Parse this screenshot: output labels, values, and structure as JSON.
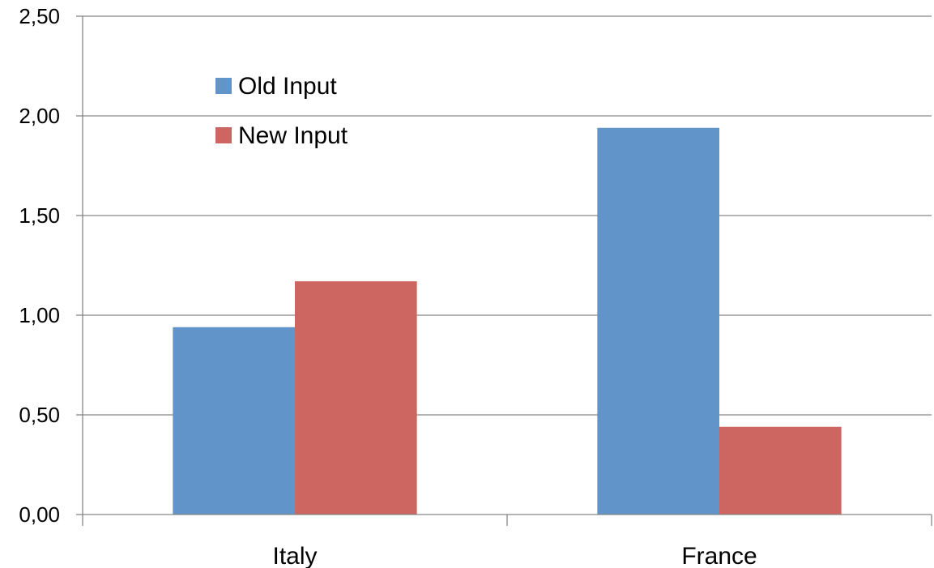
{
  "chart_data": {
    "type": "bar",
    "title": "",
    "xlabel": "",
    "ylabel": "",
    "categories": [
      "Italy",
      "France"
    ],
    "series": [
      {
        "name": "Old Input",
        "values": [
          0.94,
          1.94
        ],
        "color": "#6195c9"
      },
      {
        "name": "New Input",
        "values": [
          1.17,
          0.44
        ],
        "color": "#cd6660"
      }
    ],
    "ylim": [
      0,
      2.5
    ],
    "yticks": [
      0,
      0.5,
      1.0,
      1.5,
      2.0,
      2.5
    ],
    "ytick_labels": [
      "0,00",
      "0,50",
      "1,00",
      "1,50",
      "2,00",
      "2,50"
    ],
    "grid": true,
    "gridline_color": "#868686",
    "legend_position": "top-left inside"
  }
}
